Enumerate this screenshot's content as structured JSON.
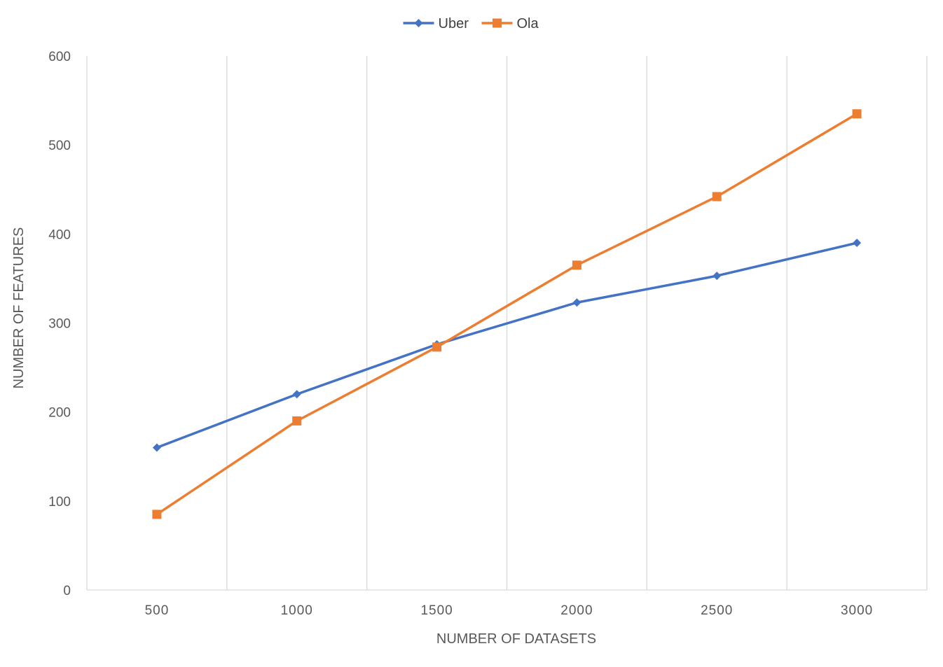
{
  "chart_data": {
    "type": "line",
    "title": "",
    "xlabel": "NUMBER OF DATASETS",
    "ylabel": "NUMBER OF FEATURES",
    "x": [
      "500",
      "1000",
      "1500",
      "2000",
      "2500",
      "3000"
    ],
    "ylim": [
      0,
      600
    ],
    "yticks": [
      "0",
      "100",
      "200",
      "300",
      "400",
      "500",
      "600"
    ],
    "grid": "vertical",
    "legend_position": "top-center",
    "series": [
      {
        "name": "Uber",
        "color": "#4472C4",
        "marker": "diamond",
        "values": [
          160,
          220,
          276,
          323,
          353,
          390
        ]
      },
      {
        "name": "Ola",
        "color": "#ED7D31",
        "marker": "square",
        "values": [
          85,
          190,
          273,
          365,
          442,
          535
        ]
      }
    ]
  }
}
